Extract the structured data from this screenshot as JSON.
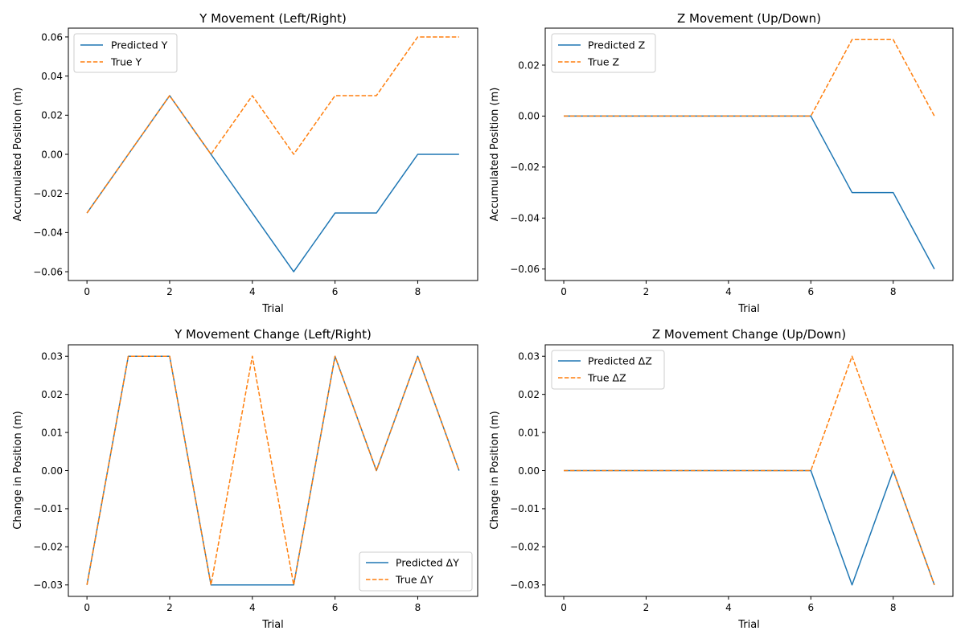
{
  "colors": {
    "predicted": "#1f77b4",
    "true": "#ff7f0e"
  },
  "chart_data": [
    {
      "type": "line",
      "title": "Y Movement (Left/Right)",
      "xlabel": "Trial",
      "ylabel": "Accumulated Position (m)",
      "x": [
        0,
        1,
        2,
        3,
        4,
        5,
        6,
        7,
        8,
        9
      ],
      "xlim": [
        -0.45,
        9.45
      ],
      "ylim": [
        -0.0645,
        0.0645
      ],
      "xticks": [
        0,
        2,
        4,
        6,
        8
      ],
      "xtick_labels": [
        "0",
        "2",
        "4",
        "6",
        "8"
      ],
      "yticks": [
        -0.06,
        -0.04,
        -0.02,
        0.0,
        0.02,
        0.04,
        0.06
      ],
      "ytick_labels": [
        "−0.06",
        "−0.04",
        "−0.02",
        "0.00",
        "0.02",
        "0.04",
        "0.06"
      ],
      "legend_position": "upper-left",
      "series": [
        {
          "name": "Predicted Y",
          "style": "solid",
          "color": "#1f77b4",
          "values": [
            -0.03,
            0.0,
            0.03,
            0.0,
            -0.03,
            -0.06,
            -0.03,
            -0.03,
            0.0,
            0.0
          ]
        },
        {
          "name": "True Y",
          "style": "dashed",
          "color": "#ff7f0e",
          "values": [
            -0.03,
            0.0,
            0.03,
            0.0,
            0.03,
            0.0,
            0.03,
            0.03,
            0.06,
            0.06
          ]
        }
      ]
    },
    {
      "type": "line",
      "title": "Z Movement (Up/Down)",
      "xlabel": "Trial",
      "ylabel": "Accumulated Position (m)",
      "x": [
        0,
        1,
        2,
        3,
        4,
        5,
        6,
        7,
        8,
        9
      ],
      "xlim": [
        -0.45,
        9.45
      ],
      "ylim": [
        -0.0645,
        0.0345
      ],
      "xticks": [
        0,
        2,
        4,
        6,
        8
      ],
      "xtick_labels": [
        "0",
        "2",
        "4",
        "6",
        "8"
      ],
      "yticks": [
        -0.06,
        -0.04,
        -0.02,
        0.0,
        0.02
      ],
      "ytick_labels": [
        "−0.06",
        "−0.04",
        "−0.02",
        "0.00",
        "0.02"
      ],
      "legend_position": "upper-left",
      "series": [
        {
          "name": "Predicted Z",
          "style": "solid",
          "color": "#1f77b4",
          "values": [
            0,
            0,
            0,
            0,
            0,
            0,
            0,
            -0.03,
            -0.03,
            -0.06
          ]
        },
        {
          "name": "True Z",
          "style": "dashed",
          "color": "#ff7f0e",
          "values": [
            0,
            0,
            0,
            0,
            0,
            0,
            0,
            0.03,
            0.03,
            0.0
          ]
        }
      ]
    },
    {
      "type": "line",
      "title": "Y Movement Change (Left/Right)",
      "xlabel": "Trial",
      "ylabel": "Change in Position (m)",
      "x": [
        0,
        1,
        2,
        3,
        4,
        5,
        6,
        7,
        8,
        9
      ],
      "xlim": [
        -0.45,
        9.45
      ],
      "ylim": [
        -0.033,
        0.033
      ],
      "xticks": [
        0,
        2,
        4,
        6,
        8
      ],
      "xtick_labels": [
        "0",
        "2",
        "4",
        "6",
        "8"
      ],
      "yticks": [
        -0.03,
        -0.02,
        -0.01,
        0.0,
        0.01,
        0.02,
        0.03
      ],
      "ytick_labels": [
        "−0.03",
        "−0.02",
        "−0.01",
        "0.00",
        "0.01",
        "0.02",
        "0.03"
      ],
      "legend_position": "lower-right",
      "series": [
        {
          "name": "Predicted ΔY",
          "style": "solid",
          "color": "#1f77b4",
          "values": [
            -0.03,
            0.03,
            0.03,
            -0.03,
            -0.03,
            -0.03,
            0.03,
            0.0,
            0.03,
            0.0
          ]
        },
        {
          "name": "True ΔY",
          "style": "dashed",
          "color": "#ff7f0e",
          "values": [
            -0.03,
            0.03,
            0.03,
            -0.03,
            0.03,
            -0.03,
            0.03,
            0.0,
            0.03,
            0.0
          ]
        }
      ]
    },
    {
      "type": "line",
      "title": "Z Movement Change (Up/Down)",
      "xlabel": "Trial",
      "ylabel": "Change in Position (m)",
      "x": [
        0,
        1,
        2,
        3,
        4,
        5,
        6,
        7,
        8,
        9
      ],
      "xlim": [
        -0.45,
        9.45
      ],
      "ylim": [
        -0.033,
        0.033
      ],
      "xticks": [
        0,
        2,
        4,
        6,
        8
      ],
      "xtick_labels": [
        "0",
        "2",
        "4",
        "6",
        "8"
      ],
      "yticks": [
        -0.03,
        -0.02,
        -0.01,
        0.0,
        0.01,
        0.02,
        0.03
      ],
      "ytick_labels": [
        "−0.03",
        "−0.02",
        "−0.01",
        "0.00",
        "0.01",
        "0.02",
        "0.03"
      ],
      "legend_position": "upper-left",
      "series": [
        {
          "name": "Predicted ΔZ",
          "style": "solid",
          "color": "#1f77b4",
          "values": [
            0,
            0,
            0,
            0,
            0,
            0,
            0,
            -0.03,
            0.0,
            -0.03
          ]
        },
        {
          "name": "True ΔZ",
          "style": "dashed",
          "color": "#ff7f0e",
          "values": [
            0,
            0,
            0,
            0,
            0,
            0,
            0,
            0.03,
            0.0,
            -0.03
          ]
        }
      ]
    }
  ]
}
